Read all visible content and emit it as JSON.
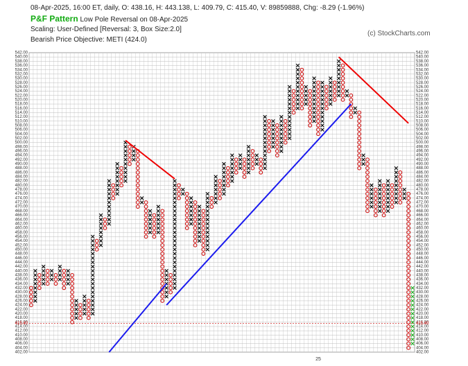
{
  "header": {
    "info": "08-Apr-2025, 16:00 ET, daily, O: 438.16, H: 443.138, L: 409.79, C: 415.40, V: 89859888, Chg: -8.29 (-1.96%)",
    "pattern_title": "P&F Pattern",
    "pattern": "Low Pole Reversal on 08-Apr-2025",
    "scaling": "Scaling: User-Defined [Reversal: 3, Box Size:2.0]",
    "objective": "Bearish Price Objective: METI (424.0)",
    "credit": "(c) StockCharts.com"
  },
  "chart_data": {
    "type": "pnf",
    "box_size": 2,
    "grid": true,
    "colors": {
      "X": "#000000",
      "O": "#cc0000"
    },
    "ylim": [
      402,
      542
    ],
    "yticks": [
      {
        "value": 402,
        "label": "402.00"
      },
      {
        "value": 404,
        "label": "404.00"
      },
      {
        "value": 406,
        "label": "406.00"
      },
      {
        "value": 408,
        "label": "408.00"
      },
      {
        "value": 410,
        "label": "410.00"
      },
      {
        "value": 412,
        "label": "412.00"
      },
      {
        "value": 414,
        "label": "414.00"
      },
      {
        "value": 416,
        "label": "416.00"
      },
      {
        "value": 418,
        "label": "418.00"
      },
      {
        "value": 420,
        "label": "420.00"
      },
      {
        "value": 422,
        "label": "422.00"
      },
      {
        "value": 424,
        "label": "424.00"
      },
      {
        "value": 426,
        "label": "426.00"
      },
      {
        "value": 428,
        "label": "428.00"
      },
      {
        "value": 430,
        "label": "430.00"
      },
      {
        "value": 432,
        "label": "432.00"
      },
      {
        "value": 434,
        "label": "434.00"
      },
      {
        "value": 436,
        "label": "436.00"
      },
      {
        "value": 438,
        "label": "438.00"
      },
      {
        "value": 440,
        "label": "440.00"
      },
      {
        "value": 442,
        "label": "442.00"
      },
      {
        "value": 444,
        "label": "444.00"
      },
      {
        "value": 446,
        "label": "446.00"
      },
      {
        "value": 448,
        "label": "448.00"
      },
      {
        "value": 450,
        "label": "450.00"
      },
      {
        "value": 452,
        "label": "452.00"
      },
      {
        "value": 454,
        "label": "454.00"
      },
      {
        "value": 456,
        "label": "456.00"
      },
      {
        "value": 458,
        "label": "458.00"
      },
      {
        "value": 460,
        "label": "460.00"
      },
      {
        "value": 462,
        "label": "462.00"
      },
      {
        "value": 464,
        "label": "464.00"
      },
      {
        "value": 466,
        "label": "466.00"
      },
      {
        "value": 468,
        "label": "468.00"
      },
      {
        "value": 470,
        "label": "470.00"
      },
      {
        "value": 472,
        "label": "472.00"
      },
      {
        "value": 474,
        "label": "474.00"
      },
      {
        "value": 476,
        "label": "476.00"
      },
      {
        "value": 478,
        "label": "478.00"
      },
      {
        "value": 480,
        "label": "480.00"
      },
      {
        "value": 482,
        "label": "482.00"
      },
      {
        "value": 484,
        "label": "484.00"
      },
      {
        "value": 486,
        "label": "486.00"
      },
      {
        "value": 488,
        "label": "488.00"
      },
      {
        "value": 490,
        "label": "490.00"
      },
      {
        "value": 492,
        "label": "492.00"
      },
      {
        "value": 494,
        "label": "494.00"
      },
      {
        "value": 496,
        "label": "496.00"
      },
      {
        "value": 498,
        "label": "498.00"
      },
      {
        "value": 500,
        "label": "500.00"
      },
      {
        "value": 502,
        "label": "502.00"
      },
      {
        "value": 504,
        "label": "504.00"
      },
      {
        "value": 506,
        "label": "506.00"
      },
      {
        "value": 508,
        "label": "508.00"
      },
      {
        "value": 510,
        "label": "510.00"
      },
      {
        "value": 512,
        "label": "512.00"
      },
      {
        "value": 514,
        "label": "514.00"
      },
      {
        "value": 516,
        "label": "516.00"
      },
      {
        "value": 518,
        "label": "518.00"
      },
      {
        "value": 520,
        "label": "520.00"
      },
      {
        "value": 522,
        "label": "522.00"
      },
      {
        "value": 524,
        "label": "524.00"
      },
      {
        "value": 526,
        "label": "526.00"
      },
      {
        "value": 528,
        "label": "528.00"
      },
      {
        "value": 530,
        "label": "530.00"
      },
      {
        "value": 532,
        "label": "532.00"
      },
      {
        "value": 534,
        "label": "534.00"
      },
      {
        "value": 536,
        "label": "536.00"
      },
      {
        "value": 538,
        "label": "538.00"
      },
      {
        "value": 540,
        "label": "540.00"
      },
      {
        "value": 542,
        "label": "542.00"
      }
    ],
    "last_price": {
      "value": 415.4,
      "label": "415.40",
      "color": "#cc0000"
    },
    "x_labels": [
      {
        "column": 70,
        "label": "25"
      }
    ],
    "columns": [
      {
        "kind": "O",
        "low": 424,
        "high": 432
      },
      {
        "kind": "X",
        "low": 426,
        "high": 440
      },
      {
        "kind": "O",
        "low": 432,
        "high": 438
      },
      {
        "kind": "X",
        "low": 434,
        "high": 442
      },
      {
        "kind": "O",
        "low": 434,
        "high": 440
      },
      {
        "kind": "X",
        "low": 436,
        "high": 440
      },
      {
        "kind": "O",
        "low": 434,
        "high": 438
      },
      {
        "kind": "X",
        "low": 436,
        "high": 442
      },
      {
        "kind": "O",
        "low": 432,
        "high": 440
      },
      {
        "kind": "X",
        "low": 434,
        "high": 440
      },
      {
        "kind": "O",
        "low": 416,
        "high": 438
      },
      {
        "kind": "X",
        "low": 418,
        "high": 426
      },
      {
        "kind": "O",
        "low": 418,
        "high": 424
      },
      {
        "kind": "X",
        "low": 420,
        "high": 428
      },
      {
        "kind": "O",
        "low": 418,
        "high": 426
      },
      {
        "kind": "X",
        "low": 420,
        "high": 456
      },
      {
        "kind": "O",
        "low": 450,
        "high": 454
      },
      {
        "kind": "X",
        "low": 452,
        "high": 466
      },
      {
        "kind": "O",
        "low": 460,
        "high": 464
      },
      {
        "kind": "X",
        "low": 462,
        "high": 482
      },
      {
        "kind": "O",
        "low": 474,
        "high": 480
      },
      {
        "kind": "X",
        "low": 476,
        "high": 490
      },
      {
        "kind": "O",
        "low": 480,
        "high": 488
      },
      {
        "kind": "X",
        "low": 482,
        "high": 500
      },
      {
        "kind": "O",
        "low": 490,
        "high": 498
      },
      {
        "kind": "X",
        "low": 492,
        "high": 498
      },
      {
        "kind": "O",
        "low": 470,
        "high": 496
      },
      {
        "kind": "X",
        "low": 472,
        "high": 474
      },
      {
        "kind": "O",
        "low": 456,
        "high": 472
      },
      {
        "kind": "X",
        "low": 458,
        "high": 468
      },
      {
        "kind": "O",
        "low": 456,
        "high": 466
      },
      {
        "kind": "X",
        "low": 458,
        "high": 470
      },
      {
        "kind": "O",
        "low": 426,
        "high": 468
      },
      {
        "kind": "X",
        "low": 428,
        "high": 440
      },
      {
        "kind": "O",
        "low": 430,
        "high": 438
      },
      {
        "kind": "X",
        "low": 432,
        "high": 482
      },
      {
        "kind": "O",
        "low": 474,
        "high": 480
      },
      {
        "kind": "X",
        "low": 476,
        "high": 478
      },
      {
        "kind": "O",
        "low": 460,
        "high": 476
      },
      {
        "kind": "X",
        "low": 462,
        "high": 474
      },
      {
        "kind": "O",
        "low": 452,
        "high": 472
      },
      {
        "kind": "X",
        "low": 454,
        "high": 470
      },
      {
        "kind": "O",
        "low": 448,
        "high": 468
      },
      {
        "kind": "X",
        "low": 450,
        "high": 476
      },
      {
        "kind": "O",
        "low": 470,
        "high": 474
      },
      {
        "kind": "X",
        "low": 472,
        "high": 484
      },
      {
        "kind": "O",
        "low": 474,
        "high": 482
      },
      {
        "kind": "X",
        "low": 476,
        "high": 490
      },
      {
        "kind": "O",
        "low": 480,
        "high": 488
      },
      {
        "kind": "X",
        "low": 482,
        "high": 494
      },
      {
        "kind": "O",
        "low": 486,
        "high": 492
      },
      {
        "kind": "X",
        "low": 488,
        "high": 494
      },
      {
        "kind": "O",
        "low": 484,
        "high": 492
      },
      {
        "kind": "X",
        "low": 486,
        "high": 498
      },
      {
        "kind": "O",
        "low": 488,
        "high": 496
      },
      {
        "kind": "X",
        "low": 490,
        "high": 494
      },
      {
        "kind": "O",
        "low": 486,
        "high": 492
      },
      {
        "kind": "X",
        "low": 488,
        "high": 512
      },
      {
        "kind": "O",
        "low": 496,
        "high": 510
      },
      {
        "kind": "X",
        "low": 498,
        "high": 510
      },
      {
        "kind": "O",
        "low": 494,
        "high": 508
      },
      {
        "kind": "X",
        "low": 496,
        "high": 512
      },
      {
        "kind": "O",
        "low": 500,
        "high": 510
      },
      {
        "kind": "X",
        "low": 502,
        "high": 526
      },
      {
        "kind": "O",
        "low": 514,
        "high": 524
      },
      {
        "kind": "X",
        "low": 516,
        "high": 536
      },
      {
        "kind": "O",
        "low": 516,
        "high": 534
      },
      {
        "kind": "X",
        "low": 518,
        "high": 526
      },
      {
        "kind": "O",
        "low": 508,
        "high": 524
      },
      {
        "kind": "X",
        "low": 510,
        "high": 530
      },
      {
        "kind": "O",
        "low": 504,
        "high": 528
      },
      {
        "kind": "X",
        "low": 506,
        "high": 528
      },
      {
        "kind": "O",
        "low": 516,
        "high": 526
      },
      {
        "kind": "X",
        "low": 518,
        "high": 530
      },
      {
        "kind": "O",
        "low": 520,
        "high": 528
      },
      {
        "kind": "X",
        "low": 522,
        "high": 538
      },
      {
        "kind": "O",
        "low": 520,
        "high": 536
      },
      {
        "kind": "X",
        "low": 522,
        "high": 524
      },
      {
        "kind": "O",
        "low": 512,
        "high": 522
      },
      {
        "kind": "X",
        "low": 514,
        "high": 516
      },
      {
        "kind": "O",
        "low": 488,
        "high": 514
      },
      {
        "kind": "X",
        "low": 490,
        "high": 494
      },
      {
        "kind": "O",
        "low": 468,
        "high": 492
      },
      {
        "kind": "X",
        "low": 470,
        "high": 480
      },
      {
        "kind": "O",
        "low": 466,
        "high": 478
      },
      {
        "kind": "X",
        "low": 468,
        "high": 482
      },
      {
        "kind": "O",
        "low": 466,
        "high": 480
      },
      {
        "kind": "X",
        "low": 468,
        "high": 482
      },
      {
        "kind": "O",
        "low": 470,
        "high": 480
      },
      {
        "kind": "X",
        "low": 472,
        "high": 488
      },
      {
        "kind": "O",
        "low": 472,
        "high": 486
      },
      {
        "kind": "X",
        "low": 474,
        "high": 478
      },
      {
        "kind": "O",
        "low": 404,
        "high": 476
      },
      {
        "kind": "X",
        "low": 406,
        "high": 432,
        "color": "#22aa22"
      }
    ],
    "trendlines": [
      {
        "color": "#ee0000",
        "from": [
          23,
          501
        ],
        "to": [
          35,
          483
        ]
      },
      {
        "color": "#ee0000",
        "from": [
          75,
          540
        ],
        "to": [
          92,
          509
        ]
      },
      {
        "color": "#1a1aee",
        "from": [
          19,
          402
        ],
        "to": [
          33,
          434
        ]
      },
      {
        "color": "#1a1aee",
        "from": [
          33,
          424
        ],
        "to": [
          78,
          518
        ]
      }
    ]
  }
}
